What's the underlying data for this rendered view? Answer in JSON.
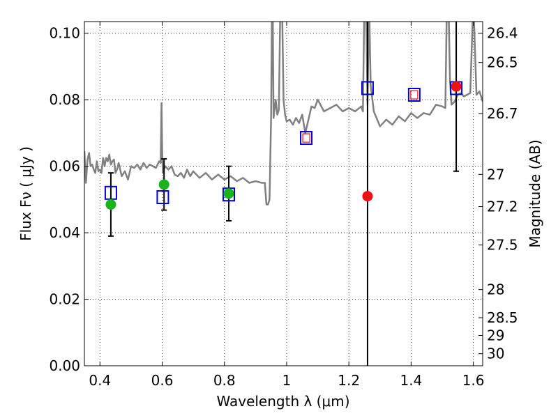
{
  "chart_data": {
    "type": "scatter",
    "xlabel": "Wavelength  λ (μm)",
    "ylabel": "Flux  Fν  ( μJy )",
    "y2label": "Magnitude (AB)",
    "xlim": [
      0.35,
      1.63
    ],
    "ylim": [
      0.0,
      0.1035
    ],
    "grid": true,
    "x_ticks": [
      0.4,
      0.6,
      0.8,
      1.0,
      1.2,
      1.4,
      1.6
    ],
    "x_tick_labels": [
      "0.4",
      "0.6",
      "0.8",
      "1",
      "1.2",
      "1.4",
      "1.6"
    ],
    "y_ticks": [
      0.0,
      0.02,
      0.04,
      0.06,
      0.08,
      0.1
    ],
    "y_tick_labels": [
      "0.00",
      "0.02",
      "0.04",
      "0.06",
      "0.08",
      "0.10"
    ],
    "y2_ticks": [
      "26.4",
      "26.5",
      "26.7",
      "27",
      "27.2",
      "27.5",
      "28",
      "28.5",
      "29",
      "30"
    ],
    "colors": {
      "model": "#808080",
      "model_squares": "#0000dd",
      "observed_green": "#1ab31a",
      "observed_red": "#ee1111",
      "errorbar": "#000000"
    },
    "model_spectrum": {
      "x": [
        0.35,
        0.355,
        0.36,
        0.365,
        0.37,
        0.375,
        0.38,
        0.385,
        0.39,
        0.395,
        0.4,
        0.405,
        0.41,
        0.415,
        0.42,
        0.425,
        0.43,
        0.435,
        0.44,
        0.445,
        0.45,
        0.455,
        0.46,
        0.47,
        0.48,
        0.49,
        0.5,
        0.51,
        0.52,
        0.53,
        0.54,
        0.55,
        0.56,
        0.57,
        0.58,
        0.59,
        0.595,
        0.598,
        0.6,
        0.602,
        0.605,
        0.61,
        0.62,
        0.63,
        0.64,
        0.65,
        0.66,
        0.67,
        0.68,
        0.69,
        0.7,
        0.72,
        0.74,
        0.76,
        0.78,
        0.8,
        0.82,
        0.84,
        0.86,
        0.88,
        0.9,
        0.92,
        0.93,
        0.935,
        0.94,
        0.945,
        0.95,
        0.953,
        0.955,
        0.958,
        0.96,
        0.965,
        0.97,
        0.975,
        0.98,
        0.985,
        0.99,
        0.995,
        1.0,
        1.01,
        1.02,
        1.03,
        1.04,
        1.05,
        1.06,
        1.07,
        1.08,
        1.09,
        1.1,
        1.12,
        1.14,
        1.16,
        1.18,
        1.2,
        1.22,
        1.24,
        1.245,
        1.25,
        1.255,
        1.26,
        1.265,
        1.27,
        1.28,
        1.3,
        1.32,
        1.34,
        1.36,
        1.38,
        1.4,
        1.42,
        1.44,
        1.46,
        1.48,
        1.5,
        1.51,
        1.515,
        1.52,
        1.525,
        1.53,
        1.54,
        1.55,
        1.56,
        1.57,
        1.58,
        1.59,
        1.6,
        1.61,
        1.62,
        1.63
      ],
      "y": [
        0.0645,
        0.055,
        0.062,
        0.064,
        0.06,
        0.0605,
        0.059,
        0.058,
        0.0615,
        0.0585,
        0.059,
        0.058,
        0.0625,
        0.06,
        0.0625,
        0.0615,
        0.0635,
        0.0605,
        0.0615,
        0.062,
        0.058,
        0.059,
        0.061,
        0.057,
        0.0585,
        0.056,
        0.06,
        0.0595,
        0.0605,
        0.059,
        0.061,
        0.0595,
        0.0605,
        0.06,
        0.0595,
        0.0615,
        0.061,
        0.079,
        0.065,
        0.058,
        0.059,
        0.06,
        0.059,
        0.06,
        0.0575,
        0.057,
        0.058,
        0.0565,
        0.059,
        0.057,
        0.0585,
        0.0565,
        0.058,
        0.056,
        0.0575,
        0.056,
        0.057,
        0.0555,
        0.0565,
        0.055,
        0.0555,
        0.055,
        0.055,
        0.0485,
        0.0485,
        0.05,
        0.075,
        0.11,
        0.11,
        0.0745,
        0.076,
        0.08,
        0.0755,
        0.077,
        0.11,
        0.11,
        0.08,
        0.0755,
        0.0735,
        0.074,
        0.0725,
        0.0745,
        0.073,
        0.0755,
        0.07,
        0.074,
        0.078,
        0.0775,
        0.08,
        0.0765,
        0.0775,
        0.0785,
        0.0765,
        0.0775,
        0.0765,
        0.078,
        0.0765,
        0.11,
        0.11,
        0.0785,
        0.11,
        0.0845,
        0.0765,
        0.072,
        0.074,
        0.0725,
        0.075,
        0.0735,
        0.076,
        0.0745,
        0.076,
        0.0755,
        0.0785,
        0.078,
        0.0775,
        0.11,
        0.11,
        0.0855,
        0.0785,
        0.0795,
        0.0815,
        0.082,
        0.081,
        0.0815,
        0.082,
        0.11,
        0.0815,
        0.0825,
        0.0795
      ]
    },
    "model_photometry": {
      "x": [
        0.435,
        0.602,
        0.814,
        1.063,
        1.26,
        1.41,
        1.545
      ],
      "y": [
        0.052,
        0.0507,
        0.0515,
        0.0685,
        0.0835,
        0.0815,
        0.0835
      ]
    },
    "observed_green": {
      "x": [
        0.435,
        0.606,
        0.814
      ],
      "y": [
        0.0485,
        0.0545,
        0.0518
      ],
      "yerr": [
        0.0095,
        0.0077,
        0.0082
      ]
    },
    "observed_red": {
      "x": [
        1.063,
        1.26,
        1.41,
        1.545
      ],
      "y": [
        0.0685,
        0.051,
        0.0815,
        0.084
      ],
      "yerr_low": [
        0,
        0.056,
        0,
        0.0255
      ],
      "yerr_high": [
        0,
        0.056,
        0,
        0.0255
      ],
      "marker": [
        "open-square",
        "filled-circle",
        "open-square",
        "filled-circle"
      ]
    }
  }
}
